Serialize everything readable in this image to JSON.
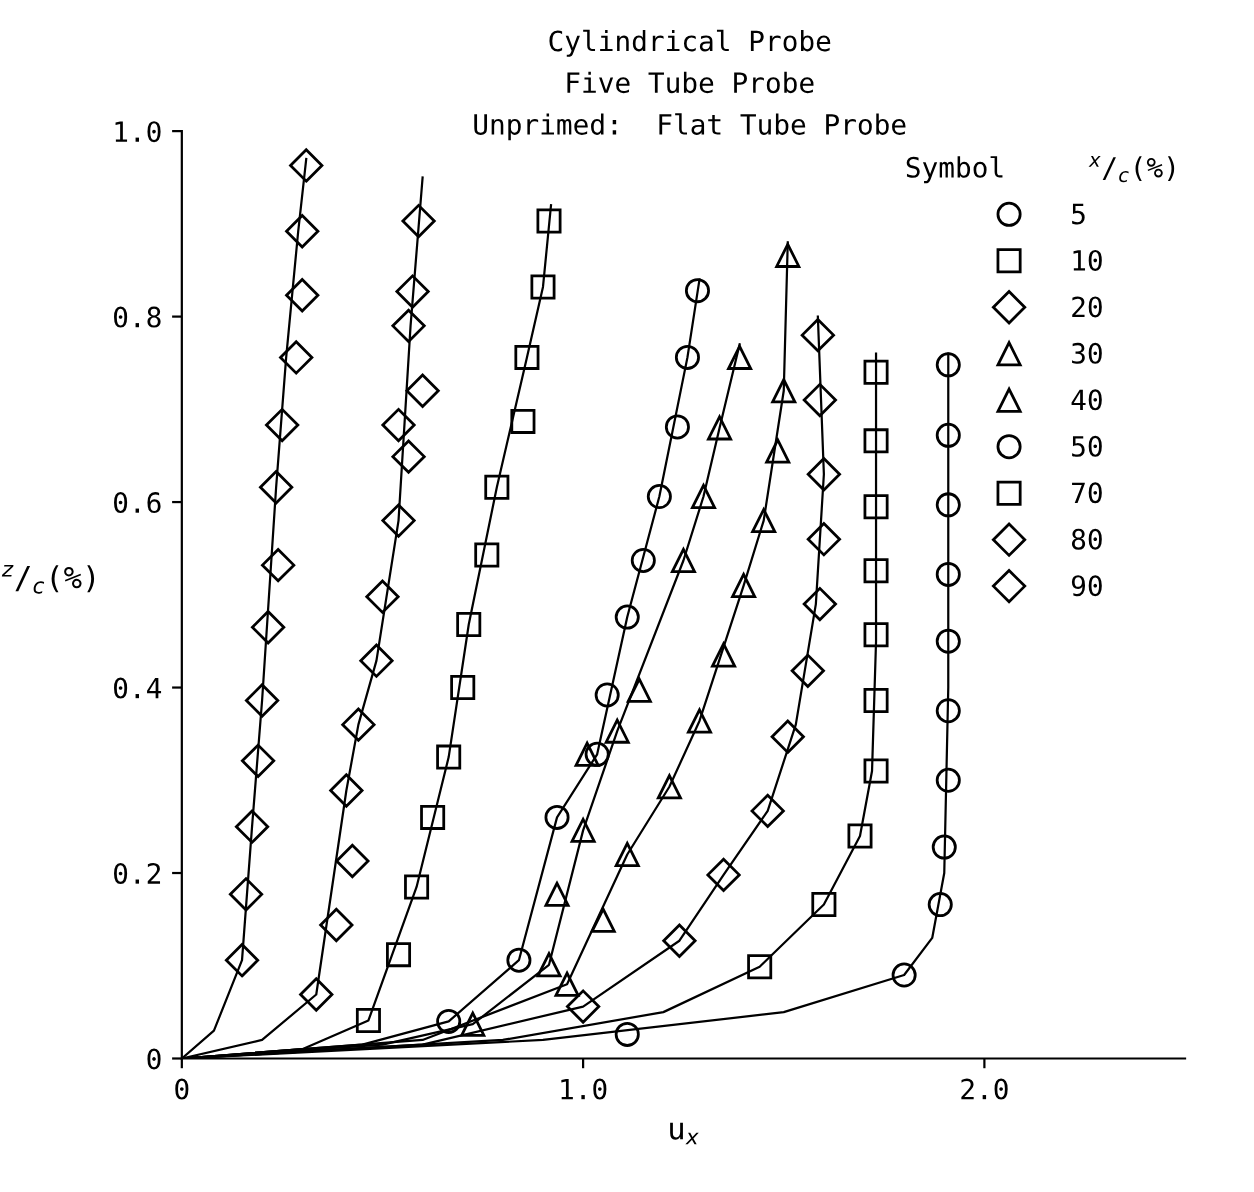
{
  "chart_data": {
    "type": "scatter",
    "annotations": [
      "Cylindrical Probe",
      "Five Tube Probe",
      "Unprimed:  Flat Tube Probe"
    ],
    "xlabel": "u$_{x}$",
    "ylabel": "$^{z}$/$_{c}$(%)",
    "legend_title": "Symbol     $^{x}$/$_{c}$(%)",
    "xlim": [
      0,
      2.5
    ],
    "xticks": [
      0,
      {
        "value": 1,
        "label": "1.0"
      },
      {
        "value": 2,
        "label": "2.0"
      }
    ],
    "ylim": [
      0,
      1.0
    ],
    "yticks": [
      0,
      0.2,
      0.4,
      0.6,
      0.8,
      {
        "value": 1,
        "label": "1.0"
      }
    ],
    "grid": false,
    "legend": "top right",
    "series": [
      {
        "name": "5",
        "color": "#000000",
        "marker": "circle",
        "x": [
          1.91,
          1.91,
          1.91,
          1.91,
          1.91,
          1.91,
          1.91,
          1.9,
          1.89,
          1.8,
          1.11
        ],
        "values": [
          0.748,
          0.672,
          0.597,
          0.522,
          0.45,
          0.375,
          0.3,
          0.228,
          0.166,
          0.09,
          0.026
        ]
      },
      {
        "name": "10",
        "color": "#000000",
        "marker": "square",
        "x": [
          1.73,
          1.73,
          1.73,
          1.73,
          1.73,
          1.73,
          1.73,
          1.69,
          1.6,
          1.44
        ],
        "values": [
          0.74,
          0.666,
          0.595,
          0.526,
          0.457,
          0.386,
          0.31,
          0.24,
          0.166,
          0.099
        ]
      },
      {
        "name": "20",
        "color": "#000000",
        "marker": "diamond",
        "x": [
          1.585,
          1.59,
          1.6,
          1.6,
          1.59,
          1.56,
          1.51,
          1.46,
          1.35,
          1.24,
          1.0
        ],
        "values": [
          0.78,
          0.71,
          0.63,
          0.56,
          0.49,
          0.418,
          0.347,
          0.267,
          0.198,
          0.127,
          0.056
        ]
      },
      {
        "name": "30",
        "color": "#000000",
        "marker": "triangle",
        "x": [
          1.51,
          1.5,
          1.485,
          1.45,
          1.4,
          1.35,
          1.29,
          1.215,
          1.11,
          1.05,
          0.96
        ],
        "values": [
          0.866,
          0.72,
          0.655,
          0.58,
          0.51,
          0.435,
          0.364,
          0.293,
          0.22,
          0.149,
          0.08
        ]
      },
      {
        "name": "40",
        "color": "#000000",
        "marker": "triangle",
        "x": [
          1.39,
          1.34,
          1.3,
          1.25,
          1.14,
          1.085,
          1.01,
          1.0,
          0.935,
          0.915,
          0.725
        ],
        "values": [
          0.756,
          0.68,
          0.606,
          0.537,
          0.397,
          0.353,
          0.328,
          0.246,
          0.177,
          0.101,
          0.037
        ]
      },
      {
        "name": "50",
        "color": "#000000",
        "marker": "circle",
        "x": [
          1.285,
          1.26,
          1.235,
          1.19,
          1.15,
          1.11,
          1.06,
          1.035,
          0.935,
          0.84,
          0.665
        ],
        "values": [
          0.828,
          0.756,
          0.681,
          0.606,
          0.537,
          0.476,
          0.392,
          0.328,
          0.26,
          0.106,
          0.04
        ]
      },
      {
        "name": "70",
        "color": "#000000",
        "marker": "square",
        "x": [
          0.915,
          0.9,
          0.86,
          0.85,
          0.785,
          0.76,
          0.715,
          0.7,
          0.665,
          0.625,
          0.585,
          0.54,
          0.465
        ],
        "values": [
          0.903,
          0.832,
          0.756,
          0.687,
          0.616,
          0.543,
          0.468,
          0.4,
          0.325,
          0.26,
          0.185,
          0.112,
          0.041
        ]
      },
      {
        "name": "80",
        "color": "#000000",
        "marker": "diamond",
        "x": [
          0.59,
          0.575,
          0.565,
          0.6,
          0.54,
          0.565,
          0.54,
          0.5,
          0.485,
          0.44,
          0.41,
          0.425,
          0.385,
          0.335
        ],
        "values": [
          0.903,
          0.827,
          0.79,
          0.72,
          0.683,
          0.649,
          0.58,
          0.498,
          0.429,
          0.36,
          0.289,
          0.213,
          0.144,
          0.069
        ]
      },
      {
        "name": "90",
        "color": "#000000",
        "marker": "diamond",
        "x": [
          0.31,
          0.3,
          0.3,
          0.285,
          0.25,
          0.235,
          0.24,
          0.215,
          0.2,
          0.19,
          0.175,
          0.16,
          0.15
        ],
        "values": [
          0.963,
          0.892,
          0.823,
          0.756,
          0.683,
          0.616,
          0.532,
          0.465,
          0.386,
          0.321,
          0.25,
          0.177,
          0.106
        ]
      },
      {
        "type": "line",
        "color": "#000000",
        "marker": "none",
        "x": [
          0,
          0.9,
          1.5,
          1.8,
          1.87,
          1.9,
          1.91,
          1.91
        ],
        "values": [
          0,
          0.02,
          0.05,
          0.09,
          0.13,
          0.2,
          0.4,
          0.76
        ]
      },
      {
        "type": "line",
        "color": "#000000",
        "marker": "none",
        "x": [
          0,
          0.8,
          1.2,
          1.44,
          1.6,
          1.69,
          1.72,
          1.73,
          1.73
        ],
        "values": [
          0,
          0.02,
          0.05,
          0.099,
          0.166,
          0.24,
          0.31,
          0.45,
          0.76
        ]
      },
      {
        "type": "line",
        "color": "#000000",
        "marker": "none",
        "x": [
          0,
          0.6,
          1.0,
          1.24,
          1.35,
          1.46,
          1.53,
          1.58,
          1.6,
          1.585
        ],
        "values": [
          0,
          0.015,
          0.056,
          0.127,
          0.198,
          0.267,
          0.36,
          0.49,
          0.63,
          0.8
        ]
      },
      {
        "type": "line",
        "color": "#000000",
        "marker": "none",
        "x": [
          0,
          0.6,
          0.96,
          1.11,
          1.215,
          1.29,
          1.4,
          1.45,
          1.5,
          1.51
        ],
        "values": [
          0,
          0.02,
          0.08,
          0.22,
          0.293,
          0.364,
          0.51,
          0.58,
          0.72,
          0.88
        ]
      },
      {
        "type": "line",
        "color": "#000000",
        "marker": "none",
        "x": [
          0,
          0.5,
          0.725,
          0.915,
          1.0,
          1.085,
          1.25,
          1.3,
          1.34,
          1.39
        ],
        "values": [
          0,
          0.015,
          0.037,
          0.101,
          0.246,
          0.353,
          0.537,
          0.606,
          0.68,
          0.77
        ]
      },
      {
        "type": "line",
        "color": "#000000",
        "marker": "none",
        "x": [
          0,
          0.45,
          0.665,
          0.84,
          0.935,
          1.035,
          1.11,
          1.19,
          1.26,
          1.29
        ],
        "values": [
          0,
          0.015,
          0.04,
          0.106,
          0.26,
          0.328,
          0.476,
          0.606,
          0.756,
          0.84
        ]
      },
      {
        "type": "line",
        "color": "#000000",
        "marker": "none",
        "x": [
          0,
          0.3,
          0.465,
          0.585,
          0.665,
          0.715,
          0.785,
          0.86,
          0.9,
          0.92
        ],
        "values": [
          0,
          0.01,
          0.041,
          0.185,
          0.325,
          0.468,
          0.616,
          0.756,
          0.832,
          0.92
        ]
      },
      {
        "type": "line",
        "color": "#000000",
        "marker": "none",
        "x": [
          0,
          0.2,
          0.335,
          0.41,
          0.44,
          0.485,
          0.54,
          0.57,
          0.6
        ],
        "values": [
          0,
          0.02,
          0.069,
          0.289,
          0.36,
          0.429,
          0.58,
          0.79,
          0.95
        ]
      },
      {
        "type": "line",
        "color": "#000000",
        "marker": "none",
        "x": [
          0,
          0.08,
          0.15,
          0.175,
          0.2,
          0.235,
          0.26,
          0.29,
          0.31
        ],
        "values": [
          0,
          0.03,
          0.106,
          0.25,
          0.386,
          0.616,
          0.756,
          0.892,
          0.97
        ]
      }
    ]
  }
}
